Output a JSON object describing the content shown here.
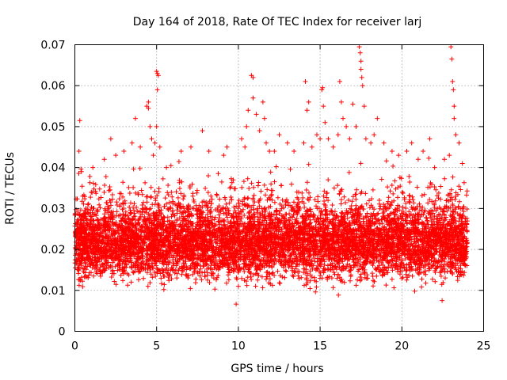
{
  "colors": {
    "marker": "#ff0000",
    "grid": "#a0a0a0",
    "axis": "#000000",
    "background": "#ffffff"
  },
  "chart_data": {
    "type": "scatter",
    "title": "Day 164 of 2018, Rate Of TEC Index for receiver larj",
    "xlabel": "GPS time / hours",
    "ylabel": "ROTI / TECUs",
    "xlim": [
      0,
      25
    ],
    "ylim": [
      0,
      0.07
    ],
    "grid": true,
    "marker": "+",
    "x_ticks": [
      0,
      5,
      10,
      15,
      20,
      25
    ],
    "x_tick_labels": [
      "0",
      "5",
      "10",
      "15",
      "20",
      "25"
    ],
    "y_ticks": [
      0,
      0.01,
      0.02,
      0.03,
      0.04,
      0.05,
      0.06,
      0.07
    ],
    "y_tick_labels": [
      "0",
      "0.01",
      "0.02",
      "0.03",
      "0.04",
      "0.05",
      "0.06",
      "0.07"
    ],
    "series": [
      {
        "name": "ROTI",
        "bands": [
          {
            "x": [
              0,
              24
            ],
            "y_low": 0.008,
            "y_high": 0.035,
            "density": "high",
            "center": 0.018
          },
          {
            "x": [
              0,
              24
            ],
            "y_low": 0.005,
            "y_high": 0.045,
            "density": "medium",
            "center": 0.02
          }
        ],
        "points": [
          [
            0.3,
            0.0515
          ],
          [
            0.25,
            0.044
          ],
          [
            0.4,
            0.039
          ],
          [
            1.1,
            0.04
          ],
          [
            1.8,
            0.042
          ],
          [
            2.2,
            0.047
          ],
          [
            2.5,
            0.043
          ],
          [
            3.0,
            0.044
          ],
          [
            3.5,
            0.046
          ],
          [
            3.7,
            0.052
          ],
          [
            4.0,
            0.045
          ],
          [
            4.4,
            0.055
          ],
          [
            4.5,
            0.0545
          ],
          [
            4.5,
            0.056
          ],
          [
            4.6,
            0.05
          ],
          [
            4.7,
            0.047
          ],
          [
            4.8,
            0.043
          ],
          [
            4.9,
            0.046
          ],
          [
            5.0,
            0.0635
          ],
          [
            5.05,
            0.063
          ],
          [
            5.1,
            0.0625
          ],
          [
            5.05,
            0.059
          ],
          [
            5.0,
            0.05
          ],
          [
            5.2,
            0.045
          ],
          [
            5.6,
            0.04
          ],
          [
            6.5,
            0.044
          ],
          [
            7.1,
            0.045
          ],
          [
            7.8,
            0.049
          ],
          [
            8.2,
            0.044
          ],
          [
            9.1,
            0.043
          ],
          [
            9.3,
            0.045
          ],
          [
            10.2,
            0.047
          ],
          [
            10.4,
            0.045
          ],
          [
            10.5,
            0.05
          ],
          [
            10.6,
            0.054
          ],
          [
            10.8,
            0.0625
          ],
          [
            10.9,
            0.062
          ],
          [
            10.9,
            0.057
          ],
          [
            11.1,
            0.053
          ],
          [
            11.3,
            0.049
          ],
          [
            11.5,
            0.056
          ],
          [
            11.6,
            0.052
          ],
          [
            11.7,
            0.046
          ],
          [
            11.9,
            0.044
          ],
          [
            12.2,
            0.044
          ],
          [
            12.5,
            0.048
          ],
          [
            13.0,
            0.046
          ],
          [
            13.4,
            0.044
          ],
          [
            14.0,
            0.046
          ],
          [
            14.1,
            0.061
          ],
          [
            14.2,
            0.054
          ],
          [
            14.3,
            0.056
          ],
          [
            14.5,
            0.045
          ],
          [
            14.8,
            0.048
          ],
          [
            15.0,
            0.047
          ],
          [
            15.1,
            0.059
          ],
          [
            15.15,
            0.0595
          ],
          [
            15.2,
            0.055
          ],
          [
            15.3,
            0.051
          ],
          [
            15.5,
            0.047
          ],
          [
            15.8,
            0.045
          ],
          [
            16.1,
            0.048
          ],
          [
            16.2,
            0.061
          ],
          [
            16.3,
            0.056
          ],
          [
            16.4,
            0.052
          ],
          [
            16.6,
            0.05
          ],
          [
            16.8,
            0.047
          ],
          [
            17.0,
            0.0555
          ],
          [
            17.2,
            0.05
          ],
          [
            17.4,
            0.0695
          ],
          [
            17.45,
            0.068
          ],
          [
            17.5,
            0.066
          ],
          [
            17.5,
            0.064
          ],
          [
            17.55,
            0.062
          ],
          [
            17.6,
            0.06
          ],
          [
            17.7,
            0.055
          ],
          [
            17.8,
            0.047
          ],
          [
            18.1,
            0.046
          ],
          [
            18.3,
            0.048
          ],
          [
            18.5,
            0.052
          ],
          [
            18.9,
            0.046
          ],
          [
            19.4,
            0.044
          ],
          [
            19.8,
            0.043
          ],
          [
            20.3,
            0.044
          ],
          [
            20.6,
            0.046
          ],
          [
            21.0,
            0.042
          ],
          [
            21.3,
            0.044
          ],
          [
            21.7,
            0.047
          ],
          [
            22.0,
            0.04
          ],
          [
            22.6,
            0.042
          ],
          [
            22.9,
            0.043
          ],
          [
            23.0,
            0.0695
          ],
          [
            23.05,
            0.0665
          ],
          [
            23.1,
            0.061
          ],
          [
            23.15,
            0.059
          ],
          [
            23.2,
            0.055
          ],
          [
            23.2,
            0.052
          ],
          [
            23.3,
            0.048
          ],
          [
            23.5,
            0.046
          ],
          [
            23.7,
            0.041
          ]
        ]
      }
    ]
  }
}
